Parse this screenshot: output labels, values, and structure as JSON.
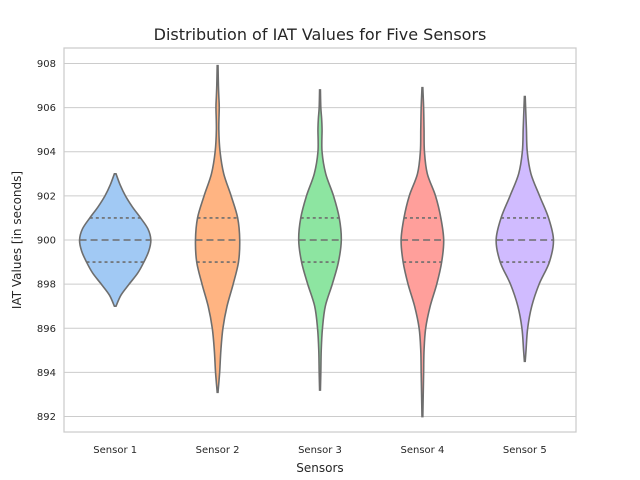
{
  "chart_data": {
    "type": "violin",
    "title": "Distribution of IAT Values for Five Sensors",
    "xlabel": "Sensors",
    "ylabel": "IAT Values [in seconds]",
    "ylim": [
      891.3,
      908.7
    ],
    "yticks": [
      892,
      894,
      896,
      898,
      900,
      902,
      904,
      906,
      908
    ],
    "grid": true,
    "inner": "quartile",
    "categories": [
      "Sensor 1",
      "Sensor 2",
      "Sensor 3",
      "Sensor 4",
      "Sensor 5"
    ],
    "series": [
      {
        "category": "Sensor 1",
        "color": "#a1c9f4",
        "min": 897.0,
        "max": 903.0,
        "q1": 899.0,
        "median": 900.0,
        "q3": 901.0,
        "density": [
          [
            897.0,
            0.02
          ],
          [
            897.5,
            0.14
          ],
          [
            898.0,
            0.34
          ],
          [
            898.5,
            0.55
          ],
          [
            899.0,
            0.7
          ],
          [
            899.5,
            0.82
          ],
          [
            900.0,
            0.87
          ],
          [
            900.5,
            0.8
          ],
          [
            901.0,
            0.62
          ],
          [
            901.5,
            0.42
          ],
          [
            902.0,
            0.25
          ],
          [
            902.5,
            0.12
          ],
          [
            903.0,
            0.02
          ]
        ]
      },
      {
        "category": "Sensor 2",
        "color": "#ffb482",
        "min": 893.1,
        "max": 907.9,
        "q1": 899.0,
        "median": 900.0,
        "q3": 901.0,
        "density": [
          [
            893.1,
            0.01
          ],
          [
            894.0,
            0.05
          ],
          [
            895.0,
            0.08
          ],
          [
            896.0,
            0.13
          ],
          [
            897.0,
            0.23
          ],
          [
            898.0,
            0.38
          ],
          [
            899.0,
            0.51
          ],
          [
            900.0,
            0.54
          ],
          [
            901.0,
            0.49
          ],
          [
            902.0,
            0.33
          ],
          [
            903.0,
            0.15
          ],
          [
            904.0,
            0.06
          ],
          [
            905.0,
            0.03
          ],
          [
            906.0,
            0.04
          ],
          [
            906.5,
            0.03
          ],
          [
            907.0,
            0.02
          ],
          [
            907.9,
            0.01
          ]
        ]
      },
      {
        "category": "Sensor 3",
        "color": "#8de5a1",
        "min": 893.2,
        "max": 906.8,
        "q1": 899.0,
        "median": 900.0,
        "q3": 901.0,
        "density": [
          [
            893.2,
            0.01
          ],
          [
            894.0,
            0.02
          ],
          [
            895.0,
            0.03
          ],
          [
            896.0,
            0.06
          ],
          [
            897.0,
            0.13
          ],
          [
            898.0,
            0.3
          ],
          [
            899.0,
            0.45
          ],
          [
            900.0,
            0.52
          ],
          [
            901.0,
            0.47
          ],
          [
            902.0,
            0.33
          ],
          [
            903.0,
            0.14
          ],
          [
            904.0,
            0.05
          ],
          [
            905.0,
            0.05
          ],
          [
            905.5,
            0.04
          ],
          [
            906.0,
            0.02
          ],
          [
            906.8,
            0.01
          ]
        ]
      },
      {
        "category": "Sensor 4",
        "color": "#ff9f9b",
        "min": 892.0,
        "max": 906.9,
        "q1": 899.0,
        "median": 900.0,
        "q3": 901.0,
        "density": [
          [
            892.0,
            0.01
          ],
          [
            893.0,
            0.02
          ],
          [
            894.0,
            0.03
          ],
          [
            895.0,
            0.04
          ],
          [
            896.0,
            0.08
          ],
          [
            897.0,
            0.19
          ],
          [
            898.0,
            0.35
          ],
          [
            899.0,
            0.47
          ],
          [
            900.0,
            0.52
          ],
          [
            901.0,
            0.45
          ],
          [
            902.0,
            0.32
          ],
          [
            903.0,
            0.12
          ],
          [
            904.0,
            0.05
          ],
          [
            905.0,
            0.04
          ],
          [
            906.0,
            0.03
          ],
          [
            906.9,
            0.01
          ]
        ]
      },
      {
        "category": "Sensor 5",
        "color": "#d0bbff",
        "min": 894.5,
        "max": 906.5,
        "q1": 899.0,
        "median": 900.0,
        "q3": 901.0,
        "density": [
          [
            894.5,
            0.01
          ],
          [
            895.0,
            0.03
          ],
          [
            896.0,
            0.07
          ],
          [
            897.0,
            0.17
          ],
          [
            898.0,
            0.35
          ],
          [
            899.0,
            0.6
          ],
          [
            900.0,
            0.7
          ],
          [
            901.0,
            0.58
          ],
          [
            902.0,
            0.36
          ],
          [
            903.0,
            0.15
          ],
          [
            904.0,
            0.06
          ],
          [
            905.0,
            0.04
          ],
          [
            905.5,
            0.03
          ],
          [
            906.0,
            0.02
          ],
          [
            906.5,
            0.01
          ]
        ]
      }
    ]
  }
}
